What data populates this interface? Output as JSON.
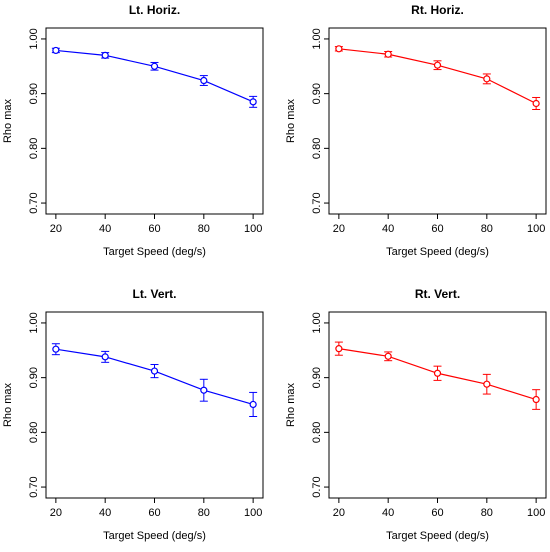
{
  "chart_data": [
    {
      "type": "line",
      "title": "Lt. Horiz.",
      "xlabel": "Target Speed (deg/s)",
      "ylabel": "Rho max",
      "x": [
        20,
        40,
        60,
        80,
        100
      ],
      "xticks": [
        "20",
        "40",
        "60",
        "80",
        "100"
      ],
      "yticks": [
        "0.70",
        "0.80",
        "0.90",
        "1.00"
      ],
      "ylim": [
        0.68,
        1.02
      ],
      "color": "#0000ff",
      "series": [
        {
          "values": [
            0.979,
            0.97,
            0.95,
            0.924,
            0.885
          ],
          "err": [
            0.004,
            0.005,
            0.007,
            0.009,
            0.01
          ]
        }
      ]
    },
    {
      "type": "line",
      "title": "Rt. Horiz.",
      "xlabel": "Target Speed (deg/s)",
      "ylabel": "Rho max",
      "x": [
        20,
        40,
        60,
        80,
        100
      ],
      "xticks": [
        "20",
        "40",
        "60",
        "80",
        "100"
      ],
      "yticks": [
        "0.70",
        "0.80",
        "0.90",
        "1.00"
      ],
      "ylim": [
        0.68,
        1.02
      ],
      "color": "#ff0000",
      "series": [
        {
          "values": [
            0.982,
            0.972,
            0.952,
            0.927,
            0.882
          ],
          "err": [
            0.004,
            0.005,
            0.008,
            0.009,
            0.011
          ]
        }
      ]
    },
    {
      "type": "line",
      "title": "Lt. Vert.",
      "xlabel": "Target Speed (deg/s)",
      "ylabel": "Rho max",
      "x": [
        20,
        40,
        60,
        80,
        100
      ],
      "xticks": [
        "20",
        "40",
        "60",
        "80",
        "100"
      ],
      "yticks": [
        "0.70",
        "0.80",
        "0.90",
        "1.00"
      ],
      "ylim": [
        0.68,
        1.02
      ],
      "color": "#0000ff",
      "series": [
        {
          "values": [
            0.952,
            0.938,
            0.912,
            0.877,
            0.851
          ],
          "err": [
            0.01,
            0.01,
            0.012,
            0.02,
            0.022
          ]
        }
      ]
    },
    {
      "type": "line",
      "title": "Rt. Vert.",
      "xlabel": "Target Speed (deg/s)",
      "ylabel": "Rho max",
      "x": [
        20,
        40,
        60,
        80,
        100
      ],
      "xticks": [
        "20",
        "40",
        "60",
        "80",
        "100"
      ],
      "yticks": [
        "0.70",
        "0.80",
        "0.90",
        "1.00"
      ],
      "ylim": [
        0.68,
        1.02
      ],
      "color": "#ff0000",
      "series": [
        {
          "values": [
            0.953,
            0.939,
            0.908,
            0.888,
            0.86
          ],
          "err": [
            0.012,
            0.008,
            0.013,
            0.018,
            0.018
          ]
        }
      ]
    }
  ]
}
